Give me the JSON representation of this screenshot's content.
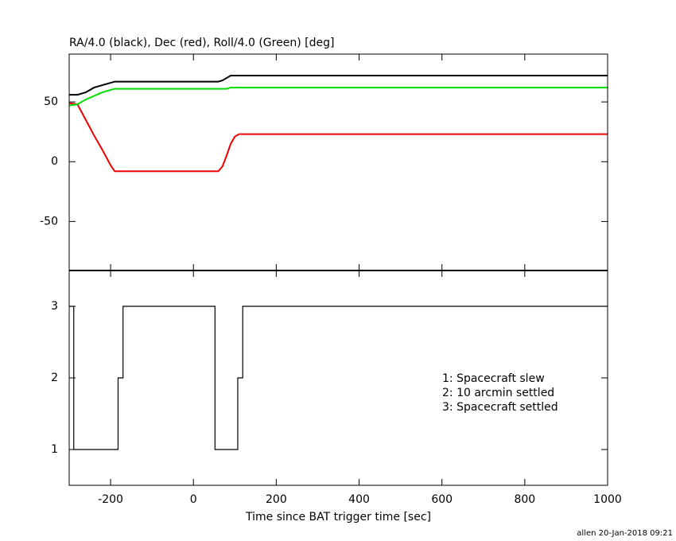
{
  "chart_data": [
    {
      "type": "line",
      "title": "RA/4.0 (black), Dec (red), Roll/4.0 (Green) [deg]",
      "x": [
        -300,
        -280,
        -260,
        -240,
        -220,
        -200,
        -190,
        -180,
        60,
        70,
        80,
        90,
        100,
        110,
        380,
        1000
      ],
      "series": [
        {
          "color": "#000000",
          "values": [
            56,
            56,
            58,
            62,
            64,
            66,
            67,
            67,
            67,
            68,
            70,
            72,
            72,
            72,
            72,
            72
          ]
        },
        {
          "color": "#ee0000",
          "values": [
            49,
            48,
            35,
            22,
            10,
            -3,
            -8,
            -8,
            -8,
            -4,
            5,
            15,
            21,
            23,
            23,
            23
          ]
        },
        {
          "color": "#00dd00",
          "values": [
            47,
            48,
            52,
            55,
            58,
            60,
            61,
            61,
            61,
            61,
            61,
            62,
            62,
            62,
            62,
            62
          ]
        }
      ],
      "xlim": [
        -300,
        1000
      ],
      "xticks": [
        -200,
        0,
        200,
        400,
        600,
        800,
        1000
      ],
      "ylim": [
        -91,
        90
      ],
      "yticks": [
        -50,
        0,
        50
      ]
    },
    {
      "type": "step",
      "xlabel": "Time since BAT trigger time [sec]",
      "x": [
        -300,
        -289,
        -182,
        -170,
        52,
        107,
        119,
        1000
      ],
      "series": [
        {
          "color": "#000000",
          "values": [
            3,
            1,
            2,
            3,
            1,
            2,
            3,
            3
          ]
        }
      ],
      "xlim": [
        -300,
        1000
      ],
      "xticks": [
        -200,
        0,
        200,
        400,
        600,
        800,
        1000
      ],
      "ylim": [
        0.5,
        3.5
      ],
      "yticks": [
        1,
        2,
        3
      ],
      "annotations": [
        "1: Spacecraft slew",
        "2: 10 arcmin settled",
        "3: Spacecraft settled"
      ]
    }
  ],
  "footer": "allen 20-Jan-2018 09:21"
}
